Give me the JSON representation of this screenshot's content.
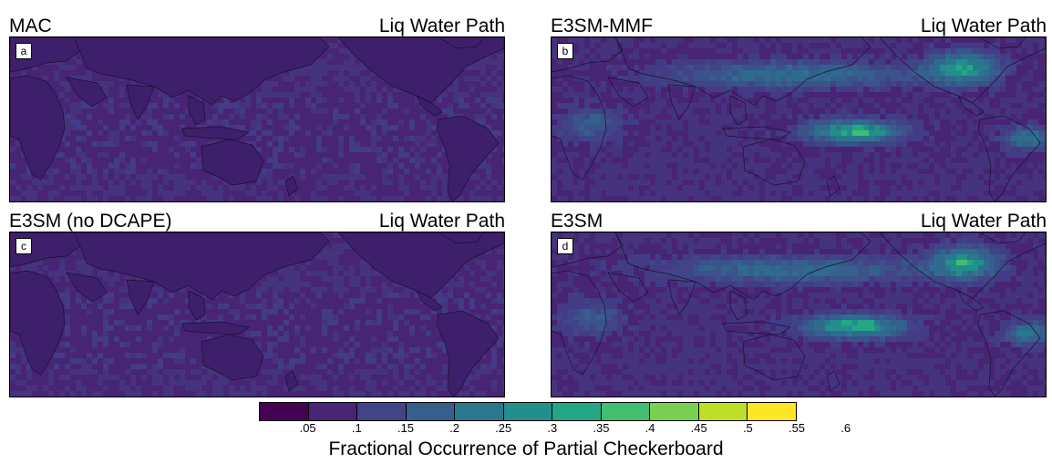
{
  "panels": [
    {
      "label": "MAC",
      "variable": "Liq Water Path",
      "letter": "a",
      "pattern": "low"
    },
    {
      "label": "E3SM-MMF",
      "variable": "Liq Water Path",
      "letter": "b",
      "pattern": "high"
    },
    {
      "label": "E3SM (no DCAPE)",
      "variable": "Liq Water Path",
      "letter": "c",
      "pattern": "low"
    },
    {
      "label": "E3SM",
      "variable": "Liq Water Path",
      "letter": "d",
      "pattern": "high"
    }
  ],
  "colorbar": {
    "colors": [
      "#440154",
      "#482475",
      "#414487",
      "#355f8d",
      "#2a788e",
      "#21908d",
      "#22a884",
      "#42be71",
      "#7ad151",
      "#bddf26",
      "#fde725"
    ],
    "ticks": [
      ".05",
      ".1",
      ".15",
      ".2",
      ".25",
      ".3",
      ".35",
      ".4",
      ".45",
      ".5",
      ".55",
      ".6"
    ],
    "label": "Fractional Occurrence of Partial Checkerboard"
  }
}
